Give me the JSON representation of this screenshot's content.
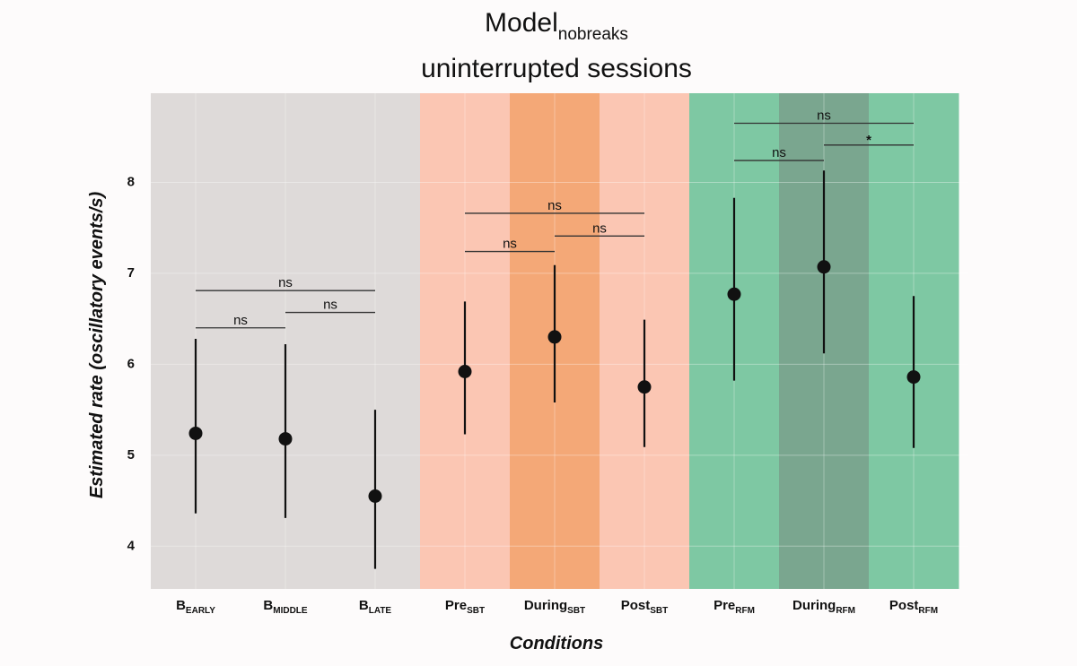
{
  "chart_data": {
    "type": "pointrange",
    "title": {
      "main": "Model",
      "sub": "nobreaks"
    },
    "subtitle": "uninterrupted sessions",
    "x_label": "Conditions",
    "y_label": "Estimated rate (oscillatory events/s)",
    "categories": [
      {
        "label": "B",
        "sub": "EARLY"
      },
      {
        "label": "B",
        "sub": "MIDDLE"
      },
      {
        "label": "B",
        "sub": "LATE"
      },
      {
        "label": "Pre",
        "sub": "SBT"
      },
      {
        "label": "During",
        "sub": "SBT"
      },
      {
        "label": "Post",
        "sub": "SBT"
      },
      {
        "label": "Pre",
        "sub": "RFM"
      },
      {
        "label": "During",
        "sub": "RFM"
      },
      {
        "label": "Post",
        "sub": "RFM"
      }
    ],
    "values": [
      5.24,
      5.18,
      4.55,
      5.92,
      6.3,
      5.75,
      6.77,
      7.07,
      5.86
    ],
    "lower": [
      4.36,
      4.31,
      3.75,
      5.23,
      5.58,
      5.09,
      5.82,
      6.12,
      5.08
    ],
    "upper": [
      6.28,
      6.22,
      5.5,
      6.69,
      7.09,
      6.49,
      7.83,
      8.13,
      6.75
    ],
    "color": "#111111",
    "band_colors": [
      "#dedad9",
      "#dedad9",
      "#dedad9",
      "#fbc6b3",
      "#f4a877",
      "#fbc6b3",
      "#7ec8a3",
      "#7aa68f",
      "#7ec8a3"
    ],
    "ylim": [
      3.53,
      8.98
    ],
    "yticks": [
      4,
      5,
      6,
      7,
      8
    ],
    "grid": true,
    "brackets": [
      {
        "between": [
          0,
          1
        ],
        "y": 6.4,
        "label": "ns"
      },
      {
        "between": [
          1,
          2
        ],
        "y": 6.57,
        "label": "ns"
      },
      {
        "between": [
          0,
          2
        ],
        "y": 6.81,
        "label": "ns"
      },
      {
        "between": [
          3,
          4
        ],
        "y": 7.24,
        "label": "ns"
      },
      {
        "between": [
          4,
          5
        ],
        "y": 7.41,
        "label": "ns"
      },
      {
        "between": [
          3,
          5
        ],
        "y": 7.66,
        "label": "ns"
      },
      {
        "between": [
          6,
          7
        ],
        "y": 8.24,
        "label": "ns"
      },
      {
        "between": [
          7,
          8
        ],
        "y": 8.41,
        "label": "*"
      },
      {
        "between": [
          6,
          8
        ],
        "y": 8.65,
        "label": "ns"
      }
    ]
  }
}
